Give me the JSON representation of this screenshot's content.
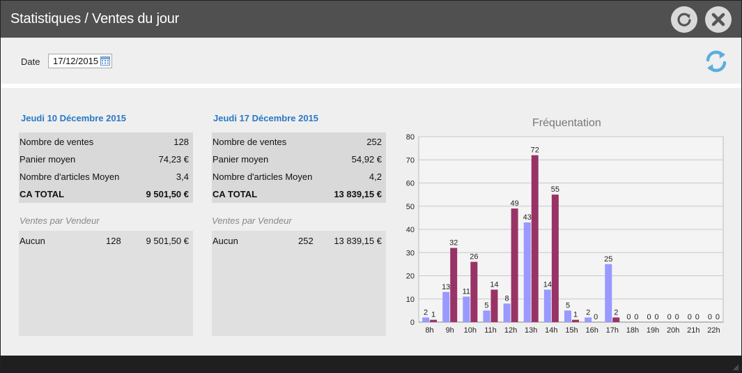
{
  "window": {
    "title": "Statistiques / Ventes du jour"
  },
  "toolbar": {
    "date_label": "Date",
    "date_value": "17/12/2015"
  },
  "left": {
    "title": "Jeudi 10 Décembre 2015",
    "stats": [
      {
        "label": "Nombre de ventes",
        "value": "128"
      },
      {
        "label": "Panier moyen",
        "value": "74,23 €"
      },
      {
        "label": "Nombre d'articles Moyen",
        "value": "3,4"
      },
      {
        "label": "CA TOTAL",
        "value": "9 501,50 €"
      }
    ],
    "sellers_title": "Ventes par Vendeur",
    "sellers": [
      {
        "name": "Aucun",
        "count": "128",
        "amount": "9 501,50 €"
      }
    ]
  },
  "right": {
    "title": "Jeudi 17 Décembre 2015",
    "stats": [
      {
        "label": "Nombre de ventes",
        "value": "252"
      },
      {
        "label": "Panier moyen",
        "value": "54,92 €"
      },
      {
        "label": "Nombre d'articles Moyen",
        "value": "4,2"
      },
      {
        "label": "CA TOTAL",
        "value": "13 839,15 €"
      }
    ],
    "sellers_title": "Ventes par Vendeur",
    "sellers": [
      {
        "name": "Aucun",
        "count": "252",
        "amount": "13 839,15 €"
      }
    ]
  },
  "chart_data": {
    "type": "bar",
    "title": "Fréquentation",
    "xlabel": "",
    "ylabel": "",
    "ylim": [
      0,
      80
    ],
    "yticks": [
      0,
      10,
      20,
      30,
      40,
      50,
      60,
      70,
      80
    ],
    "grid": true,
    "categories": [
      "8h",
      "9h",
      "10h",
      "11h",
      "12h",
      "13h",
      "14h",
      "15h",
      "16h",
      "17h",
      "18h",
      "19h",
      "20h",
      "21h",
      "22h"
    ],
    "series": [
      {
        "values": [
          2,
          13,
          11,
          5,
          8,
          43,
          14,
          5,
          2,
          25,
          0,
          0,
          0,
          0,
          0
        ],
        "color": "#9999ff"
      },
      {
        "values": [
          1,
          32,
          26,
          14,
          49,
          72,
          55,
          1,
          0,
          2,
          0,
          0,
          0,
          0,
          0
        ],
        "color": "#993366"
      }
    ]
  },
  "colors": {
    "titlebar": "#505050",
    "accent": "#2979c5",
    "sync": "#5aaede"
  },
  "icons": {
    "refresh": "refresh-icon",
    "close": "close-icon",
    "calendar": "calendar-icon",
    "sync": "sync-icon"
  }
}
